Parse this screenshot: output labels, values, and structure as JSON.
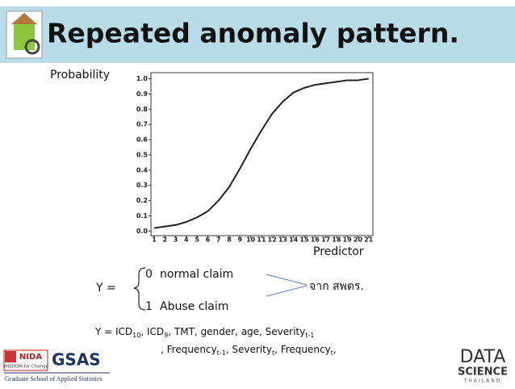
{
  "header": {
    "title": "Repeated anomaly pattern."
  },
  "chart_data": {
    "type": "line",
    "y_label": "Probability",
    "x_label": "Predictor",
    "x": [
      1,
      2,
      3,
      4,
      5,
      6,
      7,
      8,
      9,
      10,
      11,
      12,
      13,
      14,
      15,
      16,
      17,
      18,
      19,
      20,
      21
    ],
    "values": [
      0.02,
      0.03,
      0.04,
      0.06,
      0.09,
      0.13,
      0.2,
      0.29,
      0.41,
      0.54,
      0.66,
      0.77,
      0.85,
      0.91,
      0.94,
      0.96,
      0.97,
      0.98,
      0.99,
      0.99,
      1.0
    ],
    "color": "#222222",
    "xlim": [
      0.7,
      21.4
    ],
    "ylim": [
      -0.03,
      1.04
    ],
    "xticks": [
      1,
      2,
      3,
      4,
      5,
      6,
      7,
      8,
      9,
      10,
      11,
      12,
      13,
      14,
      15,
      16,
      17,
      18,
      19,
      20,
      21
    ],
    "yticks": [
      {
        "value": 0,
        "label": "0.0"
      },
      0.1,
      0.2,
      0.3,
      0.4,
      0.5,
      0.6,
      0.7,
      0.8,
      0.9,
      {
        "value": 1,
        "label": "1.0"
      }
    ]
  },
  "cases": {
    "lhs": "Y =",
    "k0": "0",
    "t0": "normal claim",
    "k1": "1",
    "t1": "Abuse claim",
    "source": "จาก สพตร."
  },
  "formula": {
    "line1": [
      "Y = ICD",
      "10",
      ", ICD",
      "9",
      ", TMT, gender, age, Severity",
      "t-1"
    ],
    "line2": [
      ", Frequency",
      "t-1",
      ", Severity",
      "t",
      ", Frequency",
      "t",
      ","
    ]
  },
  "logos": {
    "nida": "NIDA",
    "nida_tag": "WISDOM for Change",
    "gsas": "GSAS",
    "gsas_name": "Graduate School of Applied Statistics",
    "ds1": "DATA",
    "ds2": "SCIENCE",
    "ds3": "THAILAND"
  }
}
